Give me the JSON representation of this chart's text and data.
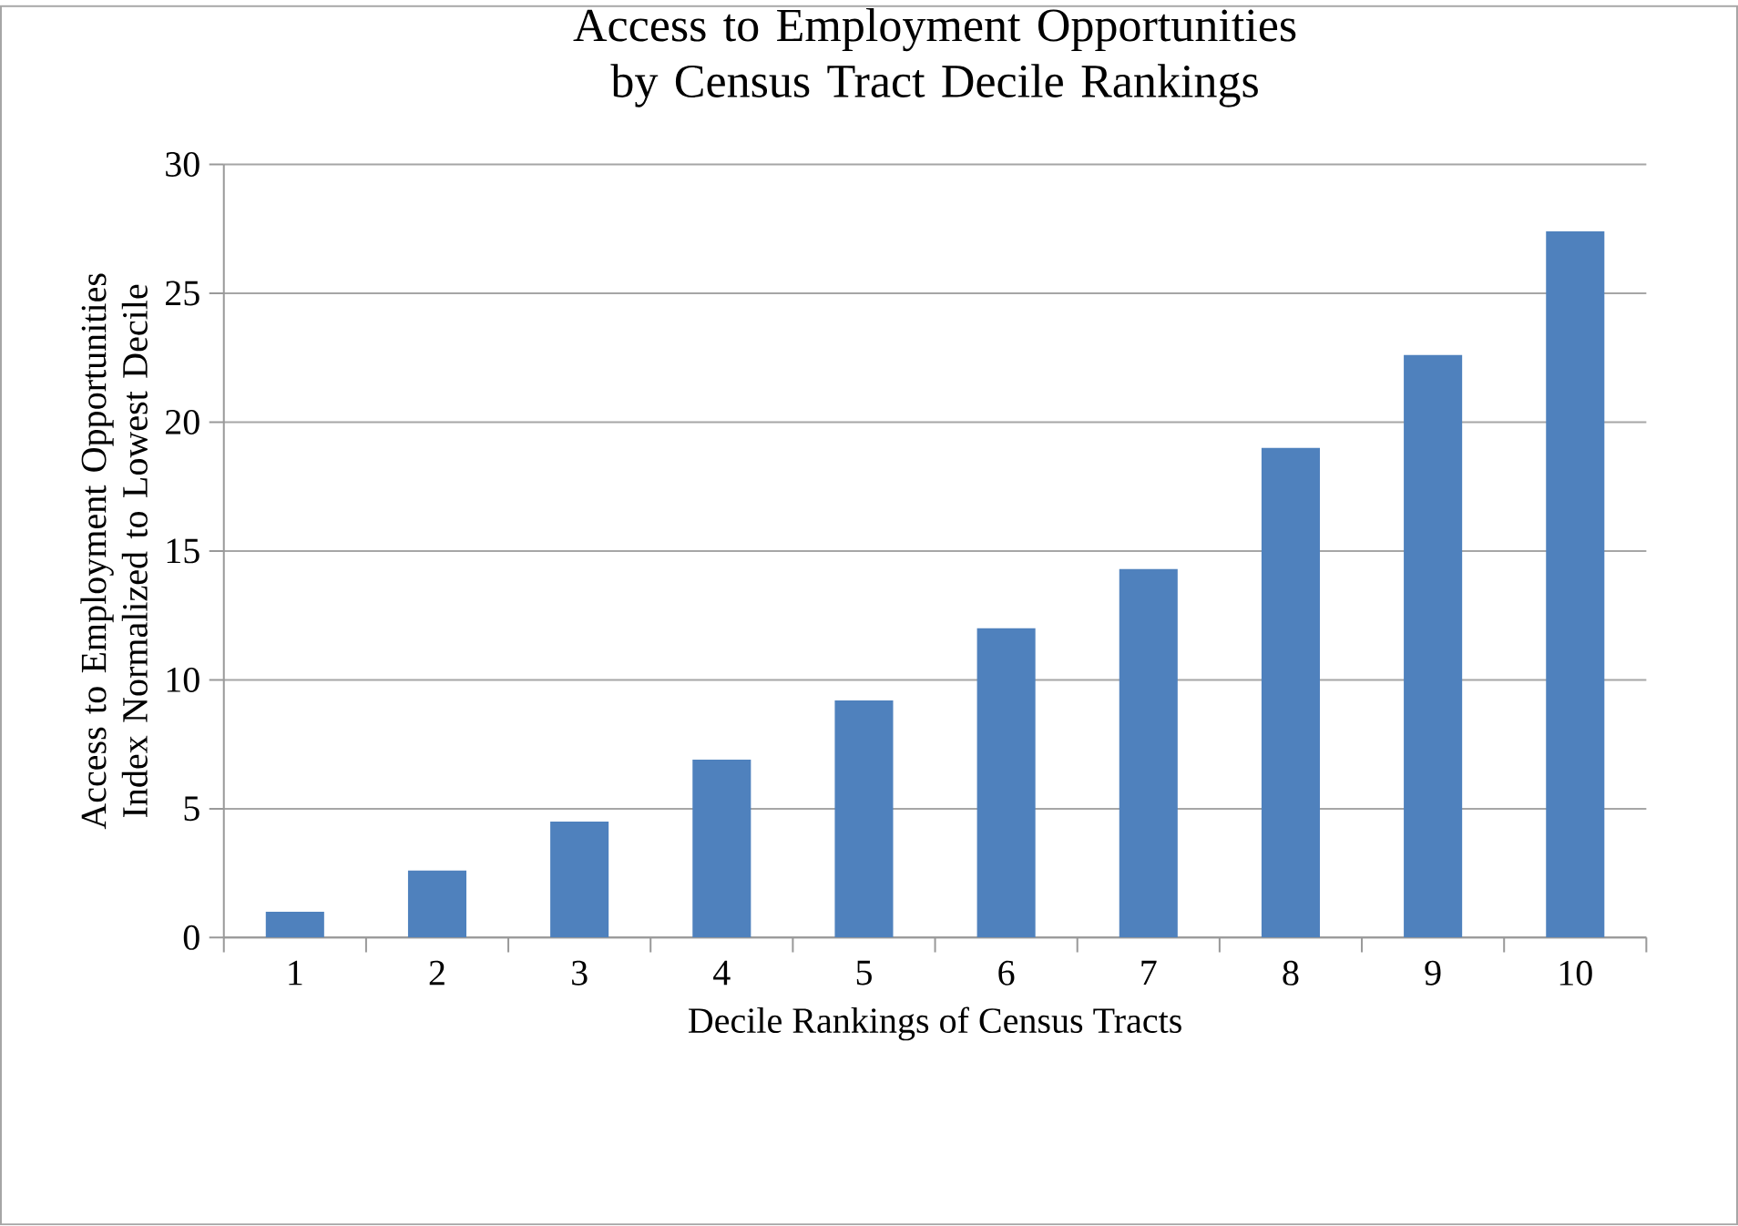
{
  "chart_data": {
    "type": "bar",
    "title": "Access to Employment Opportunities by Census Tract Decile Rankings",
    "xlabel": "Decile Rankings of Census Tracts",
    "ylabel": "Access to Employment Opportunities Index Normalized to Lowest Decile",
    "categories": [
      "1",
      "2",
      "3",
      "4",
      "5",
      "6",
      "7",
      "8",
      "9",
      "10"
    ],
    "values": [
      1.0,
      2.6,
      4.5,
      6.9,
      9.2,
      12.0,
      14.3,
      19.0,
      22.6,
      27.4
    ],
    "color": "#4f81bd",
    "ylim": [
      0,
      30
    ],
    "yticks": [
      0,
      5,
      10,
      15,
      20,
      25,
      30
    ],
    "grid": "y"
  }
}
